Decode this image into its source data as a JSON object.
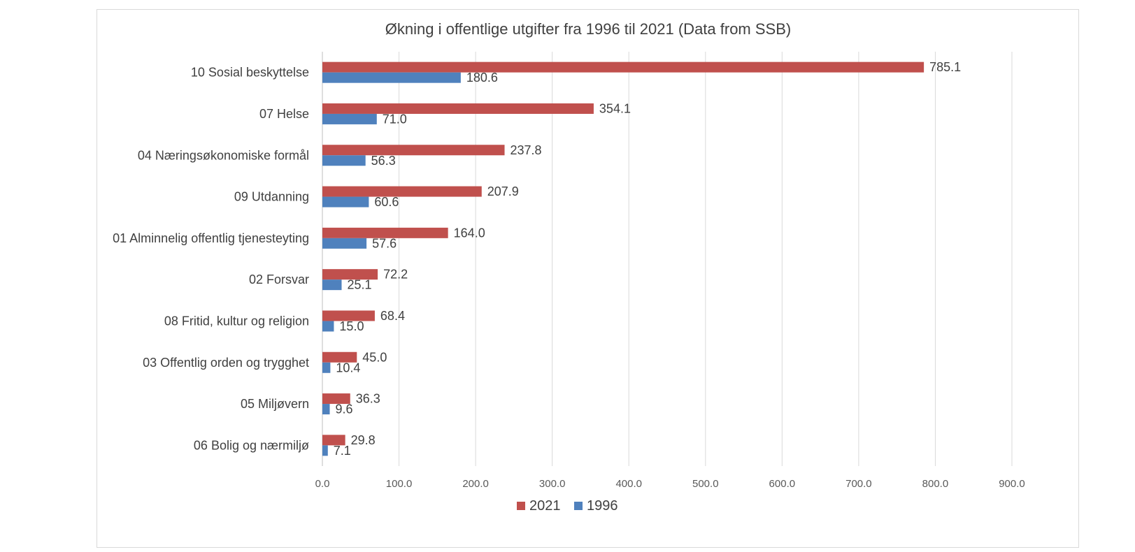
{
  "chart_data": {
    "type": "bar",
    "orientation": "horizontal",
    "title": "Økning i offentlige utgifter fra 1996 til 2021 (Data from SSB)",
    "categories": [
      "10 Sosial beskyttelse",
      "07 Helse",
      "04 Næringsøkonomiske formål",
      "09 Utdanning",
      "01 Alminnelig offentlig tjenesteyting",
      "02 Forsvar",
      "08 Fritid, kultur og religion",
      "03 Offentlig orden og trygghet",
      "05 Miljøvern",
      "06 Bolig og nærmiljø"
    ],
    "series": [
      {
        "name": "2021",
        "color": "#c0504d",
        "values": [
          785.1,
          354.1,
          237.8,
          207.9,
          164.0,
          72.2,
          68.4,
          45.0,
          36.3,
          29.8
        ]
      },
      {
        "name": "1996",
        "color": "#4f81bd",
        "values": [
          180.6,
          71.0,
          56.3,
          60.6,
          57.6,
          25.1,
          15.0,
          10.4,
          9.6,
          7.1
        ]
      }
    ],
    "xlim": [
      0,
      900
    ],
    "xticks": [
      0,
      100,
      200,
      300,
      400,
      500,
      600,
      700,
      800,
      900
    ],
    "tick_format_decimals": 1,
    "grid": true,
    "legend_position": "bottom",
    "data_labels": true
  }
}
